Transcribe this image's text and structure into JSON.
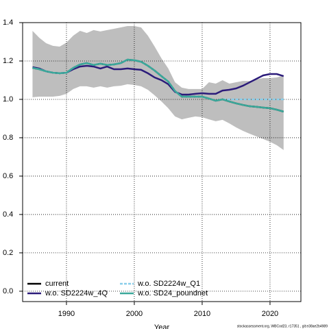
{
  "chart_data": {
    "type": "line",
    "xlabel": "Year",
    "footnote": "stockassessment.org, WBCod23, r17351 , git:e38ae2b4989",
    "x": [
      1985,
      1986,
      1987,
      1988,
      1989,
      1990,
      1991,
      1992,
      1993,
      1994,
      1995,
      1996,
      1997,
      1998,
      1999,
      2000,
      2001,
      2002,
      2003,
      2004,
      2005,
      2006,
      2007,
      2008,
      2009,
      2010,
      2011,
      2012,
      2013,
      2014,
      2015,
      2016,
      2017,
      2018,
      2019,
      2020,
      2021,
      2022
    ],
    "band": {
      "color": "#bebebe",
      "upper": [
        1.357,
        1.321,
        1.293,
        1.279,
        1.275,
        1.296,
        1.332,
        1.357,
        1.346,
        1.361,
        1.354,
        1.361,
        1.368,
        1.375,
        1.382,
        1.382,
        1.375,
        1.332,
        1.275,
        1.214,
        1.161,
        1.089,
        1.061,
        1.054,
        1.054,
        1.054,
        1.089,
        1.082,
        1.1,
        1.082,
        1.089,
        1.096,
        1.096,
        1.104,
        1.111,
        1.111,
        1.114,
        1.125
      ],
      "lower": [
        1.011,
        1.014,
        1.014,
        1.014,
        1.018,
        1.029,
        1.054,
        1.068,
        1.068,
        1.061,
        1.068,
        1.061,
        1.068,
        1.071,
        1.079,
        1.075,
        1.068,
        1.05,
        1.021,
        0.989,
        0.954,
        0.911,
        0.896,
        0.904,
        0.911,
        0.907,
        0.896,
        0.886,
        0.893,
        0.875,
        0.854,
        0.836,
        0.821,
        0.807,
        0.793,
        0.779,
        0.761,
        0.736
      ]
    },
    "series": [
      {
        "name": "current",
        "color": "#000000",
        "dashed": false,
        "values": [
          1.164,
          1.157,
          1.146,
          1.139,
          1.136,
          1.139,
          1.164,
          1.182,
          1.189,
          1.179,
          1.186,
          1.179,
          1.182,
          1.189,
          1.207,
          1.204,
          1.196,
          1.175,
          1.15,
          1.121,
          1.093,
          1.043,
          1.014,
          1.014,
          1.014,
          1.014,
          1.004,
          0.993,
          1.0,
          0.989,
          0.979,
          0.971,
          0.964,
          0.961,
          0.957,
          0.954,
          0.946,
          0.936
        ]
      },
      {
        "name": "w.o. SD2224w_4Q",
        "color": "#2b1b7a",
        "dashed": false,
        "values": [
          1.168,
          1.161,
          1.146,
          1.139,
          1.136,
          1.139,
          1.157,
          1.171,
          1.175,
          1.171,
          1.161,
          1.171,
          1.157,
          1.157,
          1.161,
          1.157,
          1.154,
          1.136,
          1.114,
          1.1,
          1.079,
          1.039,
          1.025,
          1.025,
          1.029,
          1.032,
          1.029,
          1.029,
          1.046,
          1.05,
          1.057,
          1.071,
          1.089,
          1.107,
          1.125,
          1.132,
          1.132,
          1.121
        ]
      },
      {
        "name": "w.o. SD2224w_Q1",
        "color": "#87cdea",
        "dashed": true,
        "values": [
          1.164,
          1.157,
          1.146,
          1.139,
          1.136,
          1.139,
          1.164,
          1.182,
          1.189,
          1.179,
          1.186,
          1.179,
          1.182,
          1.189,
          1.207,
          1.204,
          1.196,
          1.175,
          1.15,
          1.121,
          1.093,
          1.043,
          1.014,
          1.014,
          1.014,
          1.014,
          1.004,
          0.993,
          1.0,
          1.0,
          1.0,
          1.0,
          1.0,
          1.0,
          1.0,
          1.0,
          1.0,
          1.0
        ]
      },
      {
        "name": "w.o. SD24_poundnet",
        "color": "#3aa89a",
        "dashed": false,
        "values": [
          1.164,
          1.157,
          1.146,
          1.139,
          1.136,
          1.139,
          1.164,
          1.182,
          1.189,
          1.179,
          1.186,
          1.179,
          1.182,
          1.189,
          1.207,
          1.204,
          1.196,
          1.175,
          1.15,
          1.121,
          1.093,
          1.043,
          1.014,
          1.014,
          1.014,
          1.014,
          1.004,
          0.993,
          1.0,
          0.989,
          0.979,
          0.971,
          0.964,
          0.961,
          0.957,
          0.954,
          0.946,
          0.936
        ]
      }
    ],
    "xlim": [
      1983.54,
      2024.55
    ],
    "ylim": [
      -0.054,
      1.4
    ],
    "xticks": [
      1990,
      2000,
      2010,
      2020
    ],
    "yticks": [
      {
        "value": 0,
        "label": "0.0"
      },
      {
        "value": 0.2,
        "label": "0.2"
      },
      {
        "value": 0.4,
        "label": "0.4"
      },
      {
        "value": 0.6,
        "label": "0.6"
      },
      {
        "value": 0.8,
        "label": "0.8"
      },
      {
        "value": 1.0,
        "label": "1.0"
      },
      {
        "value": 1.2,
        "label": "1.2"
      },
      {
        "value": 1.4,
        "label": "1.4"
      }
    ],
    "grid": true,
    "legend": "bottom-left"
  }
}
